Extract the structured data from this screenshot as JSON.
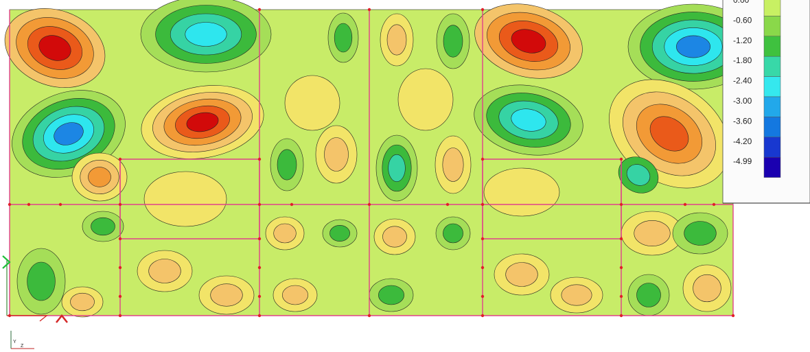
{
  "legend": {
    "labels": [
      "0.00",
      "-0.60",
      "-1.20",
      "-1.80",
      "-2.40",
      "-3.00",
      "-3.60",
      "-4.20",
      "-4.99"
    ],
    "colors": [
      "#c8f063",
      "#8ad84a",
      "#3fc13f",
      "#38d8a8",
      "#35e8ee",
      "#22a8ea",
      "#1478e0",
      "#1838d0",
      "#1a00b0"
    ]
  },
  "palette": {
    "lime": "#c8ec68",
    "light_green": "#a5de58",
    "green": "#3cba3c",
    "teal": "#36d3a4",
    "cyan": "#2ee6ee",
    "blue": "#1c86e4",
    "yellow": "#f2e468",
    "light_orange": "#f4c46a",
    "orange": "#f29a36",
    "deep_orange": "#ea5a1a",
    "red": "#d20a0a",
    "mesh_line": "#e0408a",
    "node": "#e0202a"
  },
  "axis": {
    "y_label": "Y",
    "z_label": "Z"
  }
}
